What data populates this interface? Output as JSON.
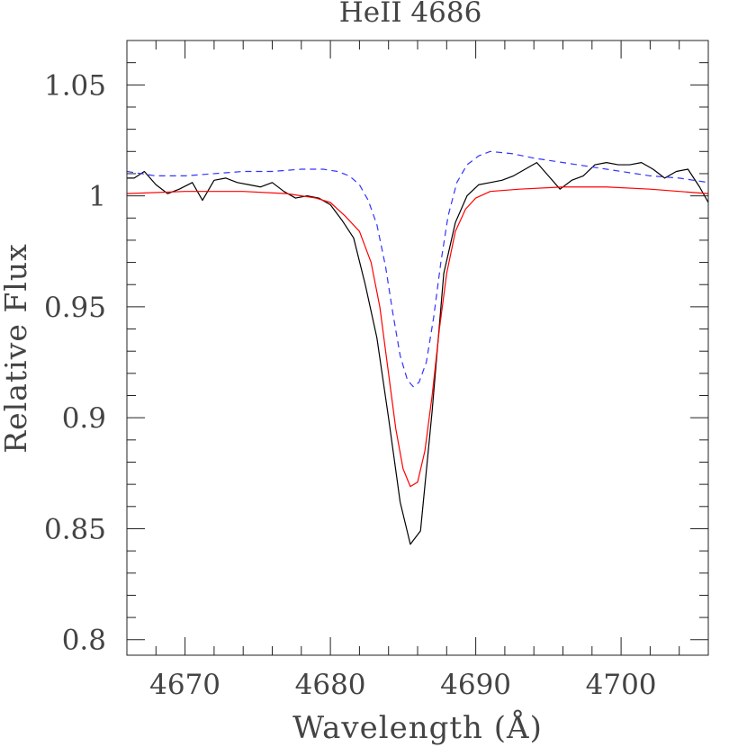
{
  "chart_data": {
    "type": "line",
    "title": "HeII 4686",
    "xlabel": "Wavelength (Å)",
    "ylabel": "Relative Flux",
    "xlim": [
      4666,
      4706
    ],
    "ylim": [
      0.793,
      1.07
    ],
    "x_ticks": [
      4670,
      4680,
      4690,
      4700
    ],
    "x_tick_labels": [
      "4670",
      "4680",
      "4690",
      "4700"
    ],
    "y_ticks": [
      0.8,
      0.85,
      0.9,
      0.95,
      1.0,
      1.05
    ],
    "y_tick_labels": [
      "0.8",
      "0.85",
      "0.9",
      "0.95",
      "1",
      "1.05"
    ],
    "grid": false,
    "series": [
      {
        "color": "#000000",
        "style": "solid",
        "points": [
          [
            4666.0,
            1.008
          ],
          [
            4666.5,
            1.008
          ],
          [
            4667.2,
            1.011
          ],
          [
            4668.0,
            1.005
          ],
          [
            4668.8,
            1.001
          ],
          [
            4669.6,
            1.003
          ],
          [
            4670.5,
            1.006
          ],
          [
            4671.2,
            0.998
          ],
          [
            4672.0,
            1.007
          ],
          [
            4672.8,
            1.008
          ],
          [
            4673.6,
            1.006
          ],
          [
            4674.4,
            1.005
          ],
          [
            4675.2,
            1.004
          ],
          [
            4676.0,
            1.006
          ],
          [
            4676.8,
            1.002
          ],
          [
            4677.6,
            0.999
          ],
          [
            4678.4,
            1.0
          ],
          [
            4679.2,
            0.999
          ],
          [
            4680.0,
            0.996
          ],
          [
            4680.8,
            0.989
          ],
          [
            4681.6,
            0.981
          ],
          [
            4682.4,
            0.96
          ],
          [
            4683.2,
            0.936
          ],
          [
            4684.0,
            0.9
          ],
          [
            4684.8,
            0.862
          ],
          [
            4685.5,
            0.843
          ],
          [
            4686.2,
            0.849
          ],
          [
            4687.0,
            0.903
          ],
          [
            4687.8,
            0.965
          ],
          [
            4688.6,
            0.988
          ],
          [
            4689.4,
            1.0
          ],
          [
            4690.2,
            1.005
          ],
          [
            4691.0,
            1.006
          ],
          [
            4691.8,
            1.007
          ],
          [
            4692.6,
            1.009
          ],
          [
            4693.4,
            1.012
          ],
          [
            4694.2,
            1.015
          ],
          [
            4695.0,
            1.009
          ],
          [
            4695.8,
            1.003
          ],
          [
            4696.6,
            1.007
          ],
          [
            4697.4,
            1.009
          ],
          [
            4698.2,
            1.014
          ],
          [
            4699.0,
            1.015
          ],
          [
            4699.8,
            1.014
          ],
          [
            4700.6,
            1.014
          ],
          [
            4701.4,
            1.015
          ],
          [
            4702.2,
            1.012
          ],
          [
            4703.0,
            1.008
          ],
          [
            4703.8,
            1.011
          ],
          [
            4704.6,
            1.012
          ],
          [
            4705.4,
            1.004
          ],
          [
            4706.0,
            0.997
          ]
        ]
      },
      {
        "color": "#ff0000",
        "style": "solid",
        "points": [
          [
            4666.0,
            1.001
          ],
          [
            4670.0,
            1.002
          ],
          [
            4674.0,
            1.002
          ],
          [
            4677.0,
            1.001
          ],
          [
            4679.0,
            0.999
          ],
          [
            4680.0,
            0.997
          ],
          [
            4681.0,
            0.991
          ],
          [
            4682.0,
            0.984
          ],
          [
            4682.8,
            0.97
          ],
          [
            4683.4,
            0.95
          ],
          [
            4684.0,
            0.92
          ],
          [
            4684.5,
            0.895
          ],
          [
            4685.0,
            0.877
          ],
          [
            4685.5,
            0.869
          ],
          [
            4686.0,
            0.871
          ],
          [
            4686.5,
            0.885
          ],
          [
            4687.0,
            0.91
          ],
          [
            4687.5,
            0.94
          ],
          [
            4688.0,
            0.965
          ],
          [
            4688.6,
            0.984
          ],
          [
            4689.3,
            0.994
          ],
          [
            4690.0,
            0.999
          ],
          [
            4691.0,
            1.002
          ],
          [
            4693.0,
            1.003
          ],
          [
            4696.0,
            1.004
          ],
          [
            4699.0,
            1.004
          ],
          [
            4702.0,
            1.003
          ],
          [
            4706.0,
            1.001
          ]
        ]
      },
      {
        "color": "#3333ff",
        "style": "dashed",
        "points": [
          [
            4666.0,
            1.011
          ],
          [
            4667.0,
            1.01
          ],
          [
            4668.0,
            1.009
          ],
          [
            4670.0,
            1.009
          ],
          [
            4672.0,
            1.01
          ],
          [
            4674.0,
            1.011
          ],
          [
            4676.0,
            1.011
          ],
          [
            4678.0,
            1.012
          ],
          [
            4679.5,
            1.012
          ],
          [
            4680.5,
            1.011
          ],
          [
            4681.3,
            1.009
          ],
          [
            4682.0,
            1.005
          ],
          [
            4682.6,
            0.998
          ],
          [
            4683.2,
            0.987
          ],
          [
            4683.8,
            0.968
          ],
          [
            4684.3,
            0.947
          ],
          [
            4684.8,
            0.928
          ],
          [
            4685.3,
            0.917
          ],
          [
            4685.7,
            0.914
          ],
          [
            4686.1,
            0.916
          ],
          [
            4686.6,
            0.925
          ],
          [
            4687.1,
            0.945
          ],
          [
            4687.6,
            0.97
          ],
          [
            4688.1,
            0.991
          ],
          [
            4688.7,
            1.006
          ],
          [
            4689.4,
            1.014
          ],
          [
            4690.2,
            1.018
          ],
          [
            4691.0,
            1.02
          ],
          [
            4692.5,
            1.019
          ],
          [
            4694.0,
            1.017
          ],
          [
            4696.0,
            1.015
          ],
          [
            4698.0,
            1.013
          ],
          [
            4700.0,
            1.011
          ],
          [
            4702.0,
            1.009
          ],
          [
            4704.0,
            1.008
          ],
          [
            4706.0,
            1.006
          ]
        ]
      }
    ]
  }
}
